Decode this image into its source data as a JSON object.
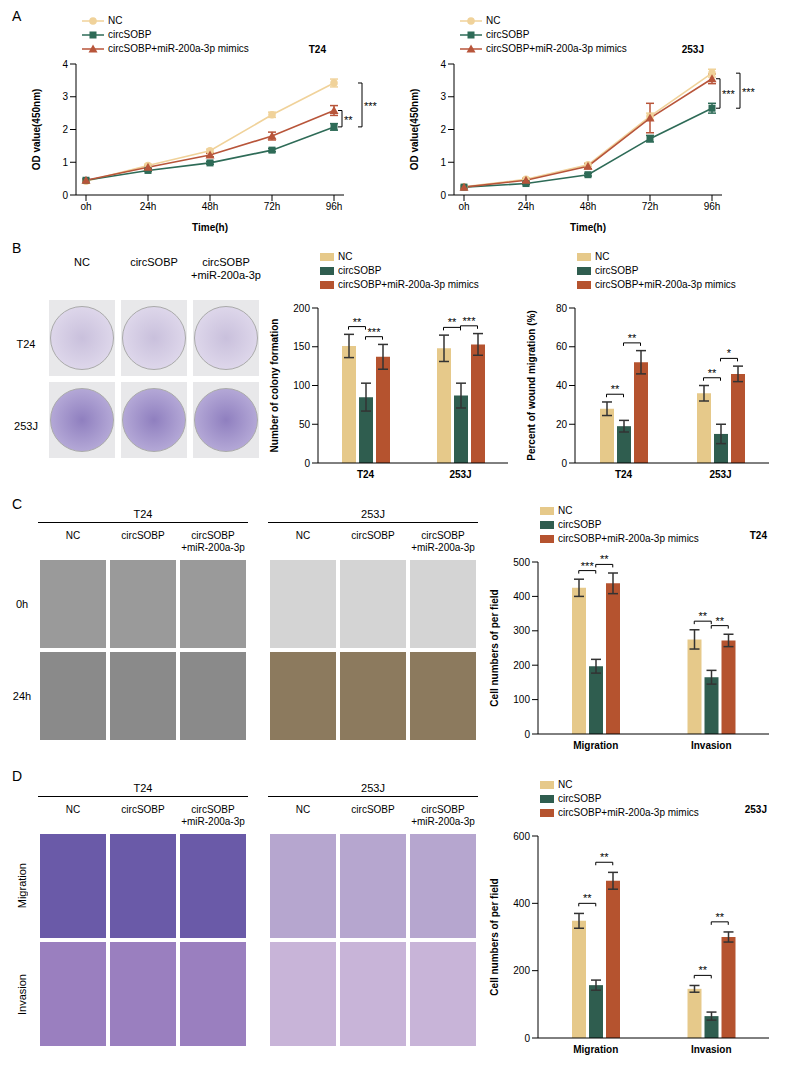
{
  "panels": [
    "A",
    "B",
    "C",
    "D"
  ],
  "chart_data": [
    {
      "type": "line",
      "title": "T24",
      "x_label": "Time(h)",
      "y_label": "OD value(450nm)",
      "categories": [
        "oh",
        "24h",
        "48h",
        "72h",
        "96h"
      ],
      "ylim": [
        0,
        4
      ],
      "yticks": [
        0,
        1,
        2,
        3,
        4
      ],
      "legend": "upper left",
      "series": [
        {
          "name": "NC",
          "color": "#F0D29A",
          "marker": "circle",
          "values": [
            0.42,
            0.9,
            1.35,
            2.45,
            3.42
          ],
          "errors": [
            0.03,
            0.04,
            0.05,
            0.08,
            0.12
          ]
        },
        {
          "name": "circSOBP",
          "color": "#2E6B57",
          "marker": "square",
          "values": [
            0.45,
            0.75,
            0.98,
            1.37,
            2.08
          ],
          "errors": [
            0.03,
            0.03,
            0.04,
            0.05,
            0.1
          ]
        },
        {
          "name": "circSOBP+miR-200a-3p mimics",
          "color": "#B8553A",
          "marker": "triangle",
          "values": [
            0.45,
            0.85,
            1.22,
            1.8,
            2.58
          ],
          "errors": [
            0.03,
            0.04,
            0.05,
            0.12,
            0.15
          ]
        }
      ],
      "annotations": [
        {
          "x": "96h",
          "between": [
            "circSOBP+miR-200a-3p mimics",
            "circSOBP"
          ],
          "text": "**"
        },
        {
          "x": "96h",
          "between": [
            "NC",
            "circSOBP"
          ],
          "text": "***"
        }
      ]
    },
    {
      "type": "line",
      "title": "253J",
      "x_label": "Time(h)",
      "y_label": "OD value(450nm)",
      "categories": [
        "oh",
        "24h",
        "48h",
        "72h",
        "96h"
      ],
      "ylim": [
        0,
        4
      ],
      "yticks": [
        0,
        1,
        2,
        3,
        4
      ],
      "legend": "upper left",
      "series": [
        {
          "name": "NC",
          "color": "#F0D29A",
          "marker": "circle",
          "values": [
            0.25,
            0.48,
            0.92,
            2.4,
            3.72
          ],
          "errors": [
            0.02,
            0.04,
            0.05,
            0.1,
            0.12
          ]
        },
        {
          "name": "circSOBP",
          "color": "#2E6B57",
          "marker": "square",
          "values": [
            0.24,
            0.35,
            0.62,
            1.72,
            2.65
          ],
          "errors": [
            0.02,
            0.03,
            0.04,
            0.1,
            0.15
          ]
        },
        {
          "name": "circSOBP+miR-200a-3p mimics",
          "color": "#B8553A",
          "marker": "triangle",
          "values": [
            0.24,
            0.45,
            0.88,
            2.35,
            3.55
          ],
          "errors": [
            0.02,
            0.05,
            0.08,
            0.45,
            0.15
          ]
        }
      ],
      "annotations": [
        {
          "x": "96h",
          "between": [
            "circSOBP+miR-200a-3p mimics",
            "circSOBP"
          ],
          "text": "***"
        },
        {
          "x": "96h",
          "between": [
            "NC",
            "circSOBP"
          ],
          "text": "***"
        }
      ]
    },
    {
      "type": "bar",
      "y_label": "Number of colony formation",
      "categories": [
        "T24",
        "253J"
      ],
      "ylim": [
        0,
        200
      ],
      "yticks": [
        0,
        50,
        100,
        150,
        200
      ],
      "legend": "upper left",
      "series": [
        {
          "name": "NC",
          "color": "#E6C98A",
          "values": [
            151,
            148
          ],
          "errors": [
            15,
            17
          ]
        },
        {
          "name": "circSOBP",
          "color": "#2F5D4F",
          "values": [
            85,
            87
          ],
          "errors": [
            18,
            16
          ]
        },
        {
          "name": "circSOBP+miR-200a-3p mimics",
          "color": "#B5532F",
          "values": [
            137,
            153
          ],
          "errors": [
            16,
            14
          ]
        }
      ],
      "annotations": [
        {
          "category": "T24",
          "between": [
            "NC",
            "circSOBP"
          ],
          "text": "**"
        },
        {
          "category": "T24",
          "between": [
            "circSOBP",
            "circSOBP+miR-200a-3p mimics"
          ],
          "text": "***"
        },
        {
          "category": "253J",
          "between": [
            "NC",
            "circSOBP"
          ],
          "text": "**"
        },
        {
          "category": "253J",
          "between": [
            "circSOBP",
            "circSOBP+miR-200a-3p mimics"
          ],
          "text": "***"
        }
      ]
    },
    {
      "type": "bar",
      "y_label": "Percent of wound migration (%)",
      "categories": [
        "T24",
        "253J"
      ],
      "ylim": [
        0,
        80
      ],
      "yticks": [
        0,
        20,
        40,
        60,
        80
      ],
      "legend": "upper left",
      "series": [
        {
          "name": "NC",
          "color": "#E6C98A",
          "values": [
            28,
            36
          ],
          "errors": [
            3.5,
            4
          ]
        },
        {
          "name": "circSOBP",
          "color": "#2F5D4F",
          "values": [
            19,
            15
          ],
          "errors": [
            3,
            5
          ]
        },
        {
          "name": "circSOBP+miR-200a-3p mimics",
          "color": "#B5532F",
          "values": [
            52,
            46
          ],
          "errors": [
            6,
            4
          ]
        }
      ],
      "annotations": [
        {
          "category": "T24",
          "between": [
            "NC",
            "circSOBP"
          ],
          "text": "**"
        },
        {
          "category": "T24",
          "between": [
            "circSOBP",
            "circSOBP+miR-200a-3p mimics"
          ],
          "text": "**"
        },
        {
          "category": "253J",
          "between": [
            "NC",
            "circSOBP"
          ],
          "text": "**"
        },
        {
          "category": "253J",
          "between": [
            "circSOBP",
            "circSOBP+miR-200a-3p mimics"
          ],
          "text": "*"
        }
      ]
    },
    {
      "type": "bar",
      "title": "T24",
      "y_label": "Cell numbers of per field",
      "categories": [
        "Migration",
        "Invasion"
      ],
      "ylim": [
        0,
        500
      ],
      "yticks": [
        0,
        100,
        200,
        300,
        400,
        500
      ],
      "legend": "upper left",
      "series": [
        {
          "name": "NC",
          "color": "#E6C98A",
          "values": [
            425,
            275
          ],
          "errors": [
            25,
            28
          ]
        },
        {
          "name": "circSOBP",
          "color": "#2F5D4F",
          "values": [
            197,
            165
          ],
          "errors": [
            20,
            20
          ]
        },
        {
          "name": "circSOBP+miR-200a-3p mimics",
          "color": "#B5532F",
          "values": [
            438,
            272
          ],
          "errors": [
            30,
            18
          ]
        }
      ],
      "annotations": [
        {
          "category": "Migration",
          "between": [
            "NC",
            "circSOBP"
          ],
          "text": "***"
        },
        {
          "category": "Migration",
          "between": [
            "circSOBP",
            "circSOBP+miR-200a-3p mimics"
          ],
          "text": "**"
        },
        {
          "category": "Invasion",
          "between": [
            "NC",
            "circSOBP"
          ],
          "text": "**"
        },
        {
          "category": "Invasion",
          "between": [
            "circSOBP",
            "circSOBP+miR-200a-3p mimics"
          ],
          "text": "**"
        }
      ]
    },
    {
      "type": "bar",
      "title": "253J",
      "y_label": "Cell numbers of per field",
      "categories": [
        "Migration",
        "Invasion"
      ],
      "ylim": [
        0,
        600
      ],
      "yticks": [
        0,
        200,
        400,
        600
      ],
      "legend": "upper left",
      "series": [
        {
          "name": "NC",
          "color": "#E6C98A",
          "values": [
            348,
            146
          ],
          "errors": [
            22,
            10
          ]
        },
        {
          "name": "circSOBP",
          "color": "#2F5D4F",
          "values": [
            157,
            65
          ],
          "errors": [
            15,
            12
          ]
        },
        {
          "name": "circSOBP+miR-200a-3p mimics",
          "color": "#B5532F",
          "values": [
            467,
            300
          ],
          "errors": [
            25,
            15
          ]
        }
      ],
      "annotations": [
        {
          "category": "Migration",
          "between": [
            "NC",
            "circSOBP"
          ],
          "text": "**"
        },
        {
          "category": "Migration",
          "between": [
            "circSOBP",
            "circSOBP+miR-200a-3p mimics"
          ],
          "text": "**"
        },
        {
          "category": "Invasion",
          "between": [
            "NC",
            "circSOBP"
          ],
          "text": "**"
        },
        {
          "category": "Invasion",
          "between": [
            "circSOBP",
            "circSOBP+miR-200a-3p mimics"
          ],
          "text": "**"
        }
      ]
    }
  ],
  "images": [
    {
      "panel": "B",
      "columns": [
        "NC",
        "circSOBP",
        "circSOBP\n+miR-200a-3p"
      ],
      "rows": [
        "T24",
        "253J"
      ]
    },
    {
      "panel": "C",
      "groups": [
        "T24",
        "253J"
      ],
      "columns": [
        "NC",
        "circSOBP",
        "circSOBP\n+miR-200a-3p"
      ],
      "rows": [
        "0h",
        "24h"
      ]
    },
    {
      "panel": "D",
      "groups": [
        "T24",
        "253J"
      ],
      "columns": [
        "NC",
        "circSOBP",
        "circSOBP\n+miR-200a-3p"
      ],
      "rows": [
        "Migration",
        "Invasion"
      ]
    }
  ]
}
